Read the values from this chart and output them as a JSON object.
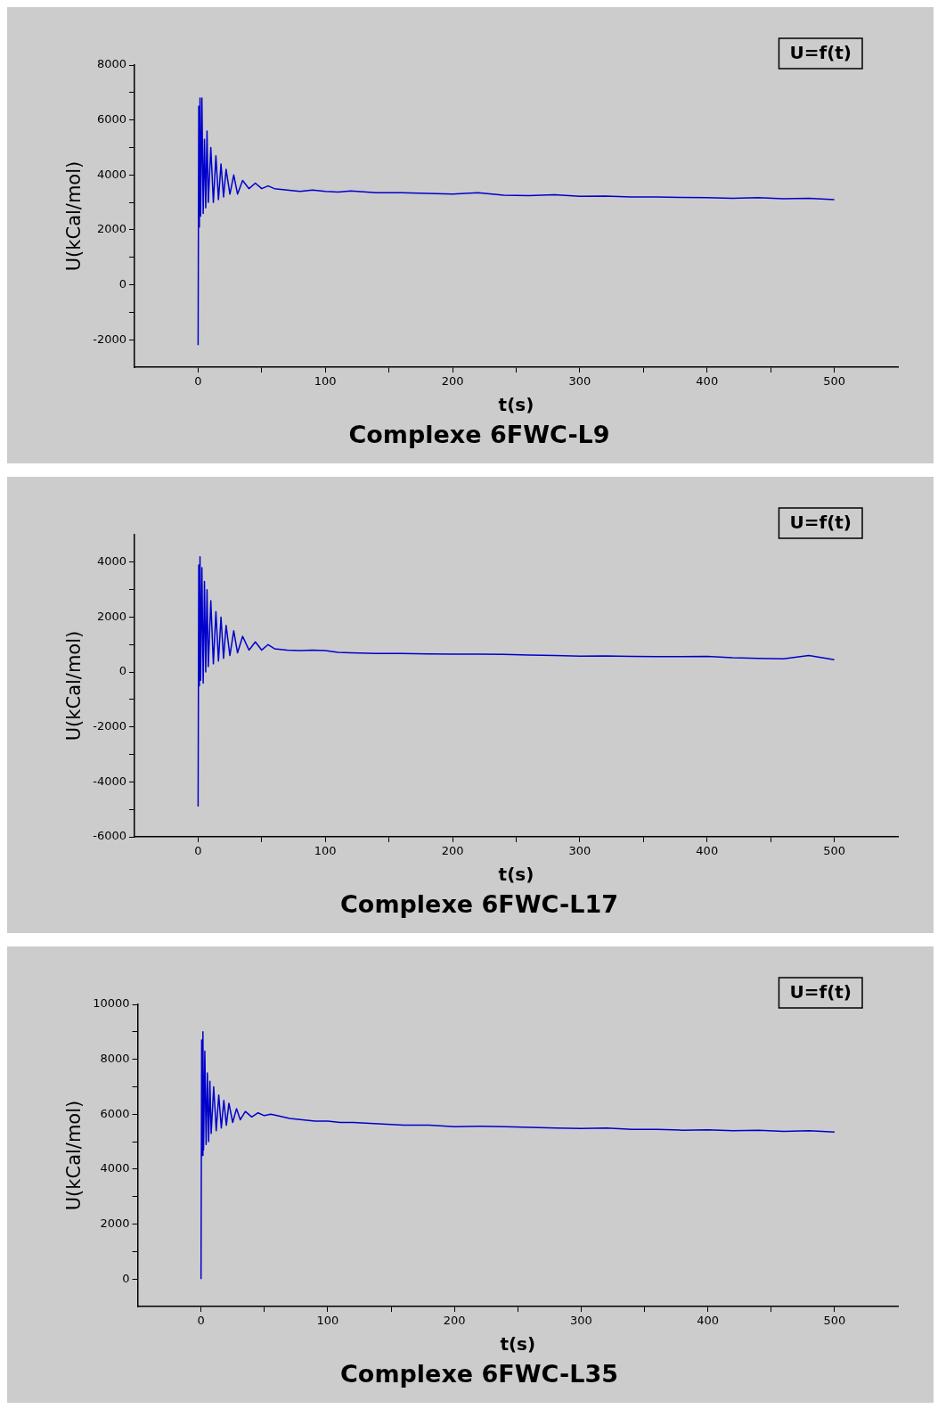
{
  "chart_data": [
    {
      "type": "line",
      "title": "Complexe 6FWC-L9",
      "xlabel": "t(s)",
      "ylabel": "U(kCal/mol)",
      "annotations": [
        "U=f(t)"
      ],
      "xlim": [
        -50,
        550
      ],
      "xticks": [
        0,
        {
          "value": 50,
          "label": null
        },
        100,
        {
          "value": 150,
          "label": null
        },
        200,
        {
          "value": 250,
          "label": null
        },
        300,
        {
          "value": 350,
          "label": null
        },
        400,
        {
          "value": 450,
          "label": null
        },
        500
      ],
      "ylim": [
        -3000,
        8000
      ],
      "yticks": [
        -2000,
        {
          "value": -1000,
          "label": null
        },
        0,
        {
          "value": 1000,
          "label": null
        },
        2000,
        {
          "value": 3000,
          "label": null
        },
        4000,
        {
          "value": 5000,
          "label": null
        },
        6000,
        {
          "value": 7000,
          "label": null
        },
        8000
      ],
      "grid": false,
      "legend": false,
      "x": [
        0,
        0.5,
        1,
        1.5,
        2,
        3,
        4,
        5,
        6,
        7,
        8,
        10,
        12,
        14,
        16,
        18,
        20,
        22,
        25,
        28,
        31,
        35,
        40,
        45,
        50,
        55,
        60,
        70,
        80,
        90,
        100,
        110,
        120,
        140,
        160,
        180,
        200,
        220,
        240,
        260,
        280,
        300,
        320,
        340,
        360,
        380,
        400,
        420,
        440,
        460,
        480,
        500
      ],
      "series": [
        {
          "color": "#0000cc",
          "values": [
            -2200,
            6500,
            2100,
            6800,
            2500,
            6800,
            2600,
            5300,
            2800,
            5600,
            3000,
            5000,
            3000,
            4700,
            3100,
            4400,
            3200,
            4200,
            3300,
            4000,
            3300,
            3800,
            3500,
            3700,
            3500,
            3600,
            3500,
            3450,
            3400,
            3450,
            3400,
            3380,
            3420,
            3350,
            3350,
            3330,
            3300,
            3350,
            3260,
            3250,
            3280,
            3220,
            3230,
            3200,
            3200,
            3180,
            3170,
            3150,
            3170,
            3130,
            3150,
            3100
          ]
        }
      ]
    },
    {
      "type": "line",
      "title": "Complexe 6FWC-L17",
      "xlabel": "t(s)",
      "ylabel": "U(kCal/mol)",
      "annotations": [
        "U=f(t)"
      ],
      "xlim": [
        -50,
        550
      ],
      "xticks": [
        0,
        {
          "value": 50,
          "label": null
        },
        100,
        {
          "value": 150,
          "label": null
        },
        200,
        {
          "value": 250,
          "label": null
        },
        300,
        {
          "value": 350,
          "label": null
        },
        400,
        {
          "value": 450,
          "label": null
        },
        500
      ],
      "ylim": [
        -6000,
        5000
      ],
      "yticks": [
        -6000,
        {
          "value": -5000,
          "label": null
        },
        -4000,
        {
          "value": -3000,
          "label": null
        },
        -2000,
        {
          "value": -1000,
          "label": null
        },
        0,
        {
          "value": 1000,
          "label": null
        },
        2000,
        {
          "value": 3000,
          "label": null
        },
        4000
      ],
      "grid": false,
      "legend": false,
      "x": [
        0,
        0.5,
        1,
        1.5,
        2,
        3,
        4,
        5,
        6,
        7,
        8,
        10,
        12,
        14,
        16,
        18,
        20,
        22,
        25,
        28,
        31,
        35,
        40,
        45,
        50,
        55,
        60,
        70,
        80,
        90,
        100,
        110,
        120,
        140,
        160,
        180,
        200,
        220,
        240,
        260,
        280,
        300,
        320,
        340,
        360,
        380,
        400,
        420,
        440,
        460,
        480,
        500
      ],
      "series": [
        {
          "color": "#0000cc",
          "values": [
            -4900,
            3900,
            -500,
            4200,
            -300,
            3800,
            -400,
            3300,
            0,
            3000,
            200,
            2600,
            300,
            2200,
            400,
            2000,
            500,
            1700,
            600,
            1500,
            700,
            1300,
            800,
            1100,
            800,
            1000,
            850,
            800,
            780,
            800,
            780,
            720,
            700,
            680,
            680,
            660,
            650,
            650,
            640,
            620,
            600,
            580,
            590,
            570,
            560,
            560,
            570,
            520,
            500,
            480,
            600,
            450
          ]
        }
      ]
    },
    {
      "type": "line",
      "title": "Complexe 6FWC-L35",
      "xlabel": "t(s)",
      "ylabel": "U(kCal/mol)",
      "annotations": [
        "U=f(t)"
      ],
      "xlim": [
        -50,
        550
      ],
      "xticks": [
        0,
        {
          "value": 50,
          "label": null
        },
        100,
        {
          "value": 150,
          "label": null
        },
        200,
        {
          "value": 250,
          "label": null
        },
        300,
        {
          "value": 350,
          "label": null
        },
        400,
        {
          "value": 450,
          "label": null
        },
        500
      ],
      "ylim": [
        -1000,
        10000
      ],
      "yticks": [
        0,
        {
          "value": 1000,
          "label": null
        },
        2000,
        {
          "value": 3000,
          "label": null
        },
        4000,
        {
          "value": 5000,
          "label": null
        },
        6000,
        {
          "value": 7000,
          "label": null
        },
        8000,
        {
          "value": 9000,
          "label": null
        },
        10000
      ],
      "grid": false,
      "legend": false,
      "x": [
        0,
        0.5,
        1,
        1.5,
        2,
        3,
        4,
        5,
        6,
        7,
        8,
        10,
        12,
        14,
        16,
        18,
        20,
        22,
        25,
        28,
        31,
        35,
        40,
        45,
        50,
        55,
        60,
        70,
        80,
        90,
        100,
        110,
        120,
        140,
        160,
        180,
        200,
        220,
        240,
        260,
        280,
        300,
        320,
        340,
        360,
        380,
        400,
        420,
        440,
        460,
        480,
        500
      ],
      "series": [
        {
          "color": "#0000cc",
          "values": [
            0,
            8700,
            4500,
            9000,
            4700,
            8300,
            4900,
            7500,
            5000,
            7200,
            5300,
            7000,
            5400,
            6700,
            5500,
            6500,
            5600,
            6400,
            5700,
            6200,
            5800,
            6100,
            5900,
            6050,
            5950,
            6000,
            5950,
            5850,
            5800,
            5750,
            5750,
            5700,
            5700,
            5650,
            5600,
            5600,
            5550,
            5560,
            5550,
            5520,
            5500,
            5480,
            5500,
            5450,
            5450,
            5420,
            5430,
            5400,
            5420,
            5380,
            5400,
            5350
          ]
        }
      ]
    }
  ]
}
